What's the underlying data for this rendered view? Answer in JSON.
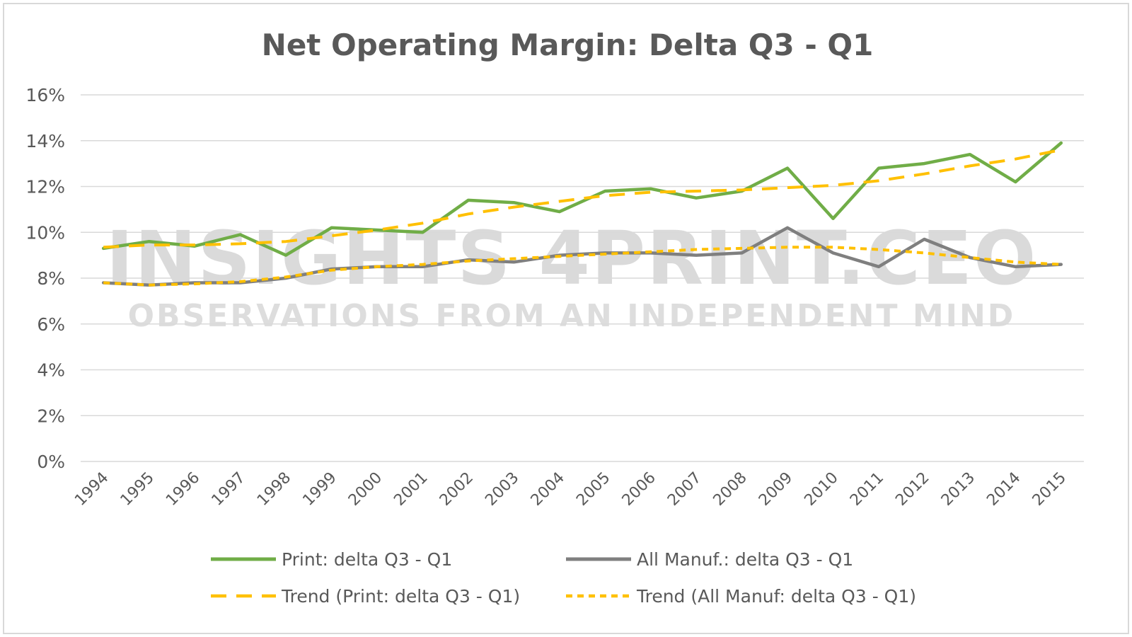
{
  "chart_data": {
    "type": "line",
    "title": "Net Operating Margin: Delta Q3 - Q1",
    "xlabel": "",
    "ylabel": "",
    "x": [
      "1994",
      "1995",
      "1996",
      "1997",
      "1998",
      "1999",
      "2000",
      "2001",
      "2002",
      "2003",
      "2004",
      "2005",
      "2006",
      "2007",
      "2008",
      "2009",
      "2010",
      "2011",
      "2012",
      "2013",
      "2014",
      "2015"
    ],
    "y_ticks": [
      "0%",
      "2%",
      "4%",
      "6%",
      "8%",
      "10%",
      "12%",
      "14%",
      "16%"
    ],
    "ylim": [
      0,
      16
    ],
    "y_unit": "%",
    "grid": true,
    "legend_position": "bottom",
    "series": [
      {
        "name": "Print: delta Q3 - Q1",
        "color": "#70ad47",
        "style": "solid",
        "values": [
          9.3,
          9.6,
          9.4,
          9.9,
          9.0,
          10.2,
          10.1,
          10.0,
          11.4,
          11.3,
          10.9,
          11.8,
          11.9,
          11.5,
          11.8,
          12.8,
          10.6,
          12.8,
          13.0,
          13.4,
          12.2,
          13.9
        ]
      },
      {
        "name": "All Manuf.: delta Q3 - Q1",
        "color": "#7f7f7f",
        "style": "solid",
        "values": [
          7.8,
          7.7,
          7.8,
          7.8,
          8.0,
          8.4,
          8.5,
          8.5,
          8.8,
          8.7,
          9.0,
          9.1,
          9.1,
          9.0,
          9.1,
          10.2,
          9.1,
          8.5,
          9.7,
          8.9,
          8.5,
          8.6
        ]
      },
      {
        "name": "Trend (Print: delta Q3 - Q1)",
        "color": "#ffc000",
        "style": "long-dash",
        "values": [
          9.35,
          9.45,
          9.45,
          9.5,
          9.6,
          9.85,
          10.1,
          10.4,
          10.8,
          11.1,
          11.35,
          11.6,
          11.75,
          11.8,
          11.85,
          11.95,
          12.05,
          12.25,
          12.55,
          12.9,
          13.2,
          13.6
        ]
      },
      {
        "name": "Trend (All Manuf: delta Q3 - Q1)",
        "color": "#ffc000",
        "style": "short-dash",
        "values": [
          7.8,
          7.7,
          7.75,
          7.85,
          8.05,
          8.35,
          8.5,
          8.6,
          8.75,
          8.85,
          8.95,
          9.05,
          9.15,
          9.25,
          9.3,
          9.35,
          9.35,
          9.25,
          9.1,
          8.9,
          8.7,
          8.6
        ]
      }
    ]
  },
  "watermark": {
    "line1": "INSIGHTS 4PRINT.CEO",
    "line2": "OBSERVATIONS FROM AN INDEPENDENT MIND"
  }
}
